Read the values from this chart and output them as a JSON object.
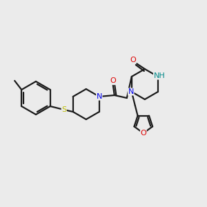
{
  "background_color": "#ebebeb",
  "bond_color": "#1a1a1a",
  "atom_colors": {
    "N": "#0000ee",
    "O": "#dd0000",
    "S": "#bbbb00",
    "NH": "#008888",
    "C": "#1a1a1a"
  },
  "figsize": [
    3.0,
    3.0
  ],
  "dpi": 100
}
